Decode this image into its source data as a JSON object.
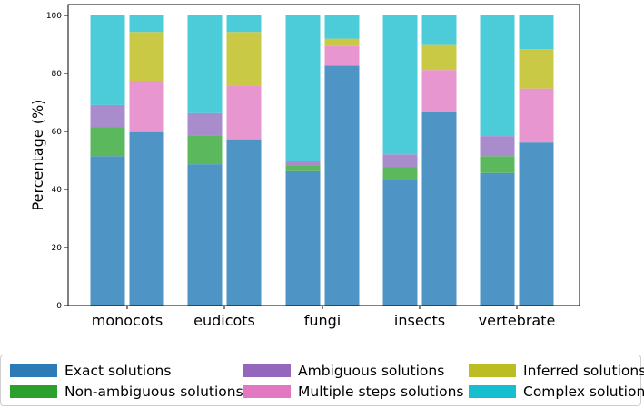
{
  "chart_data": {
    "type": "bar",
    "stacked": true,
    "title": "",
    "xlabel": "",
    "ylabel": "Percentage (%)",
    "ylim": [
      0,
      100
    ],
    "yticks": [
      "0",
      "20",
      "40",
      "60",
      "80",
      "100"
    ],
    "categories": [
      "monocots",
      "eudicots",
      "fungi",
      "insects",
      "vertebrate"
    ],
    "bars_per_category": 2,
    "series": [
      {
        "name": "Exact solutions",
        "color": "#4e94c4",
        "values": [
          [
            51.5,
            59.8
          ],
          [
            48.7,
            57.3
          ],
          [
            46.3,
            82.7
          ],
          [
            43.3,
            66.8
          ],
          [
            45.7,
            56.2
          ]
        ]
      },
      {
        "name": "Non-ambiguous solutions",
        "color": "#5cb85c",
        "values": [
          [
            9.9,
            0
          ],
          [
            10.0,
            0
          ],
          [
            2.0,
            0
          ],
          [
            4.5,
            0
          ],
          [
            5.8,
            0
          ]
        ]
      },
      {
        "name": "Ambiguous solutions",
        "color": "#a88ccc",
        "values": [
          [
            7.7,
            0
          ],
          [
            7.6,
            0
          ],
          [
            1.4,
            0
          ],
          [
            4.3,
            0
          ],
          [
            6.9,
            0
          ]
        ]
      },
      {
        "name": "Multiple steps solutions",
        "color": "#e896cf",
        "values": [
          [
            0,
            17.7
          ],
          [
            0,
            18.5
          ],
          [
            0,
            6.9
          ],
          [
            0,
            14.4
          ],
          [
            0,
            18.6
          ]
        ]
      },
      {
        "name": "Inferred solutions",
        "color": "#c9c946",
        "values": [
          [
            0,
            16.8
          ],
          [
            0,
            18.5
          ],
          [
            0,
            2.4
          ],
          [
            0,
            8.6
          ],
          [
            0,
            13.6
          ]
        ]
      },
      {
        "name": "Complex solutions",
        "color": "#4ccbd9",
        "values": [
          [
            30.9,
            5.7
          ],
          [
            33.7,
            5.7
          ],
          [
            50.3,
            8.0
          ],
          [
            47.9,
            10.2
          ],
          [
            41.6,
            11.6
          ]
        ]
      }
    ],
    "legend": {
      "position": "bottom",
      "entries": [
        {
          "label": "Exact solutions",
          "color": "#2c7bb6"
        },
        {
          "label": "Non-ambiguous solutions",
          "color": "#2ca02c"
        },
        {
          "label": "Ambiguous solutions",
          "color": "#9467bd"
        },
        {
          "label": "Multiple steps solutions",
          "color": "#e377c2"
        },
        {
          "label": "Inferred solutions",
          "color": "#bcbd22"
        },
        {
          "label": "Complex solutions",
          "color": "#17becf"
        }
      ]
    }
  }
}
